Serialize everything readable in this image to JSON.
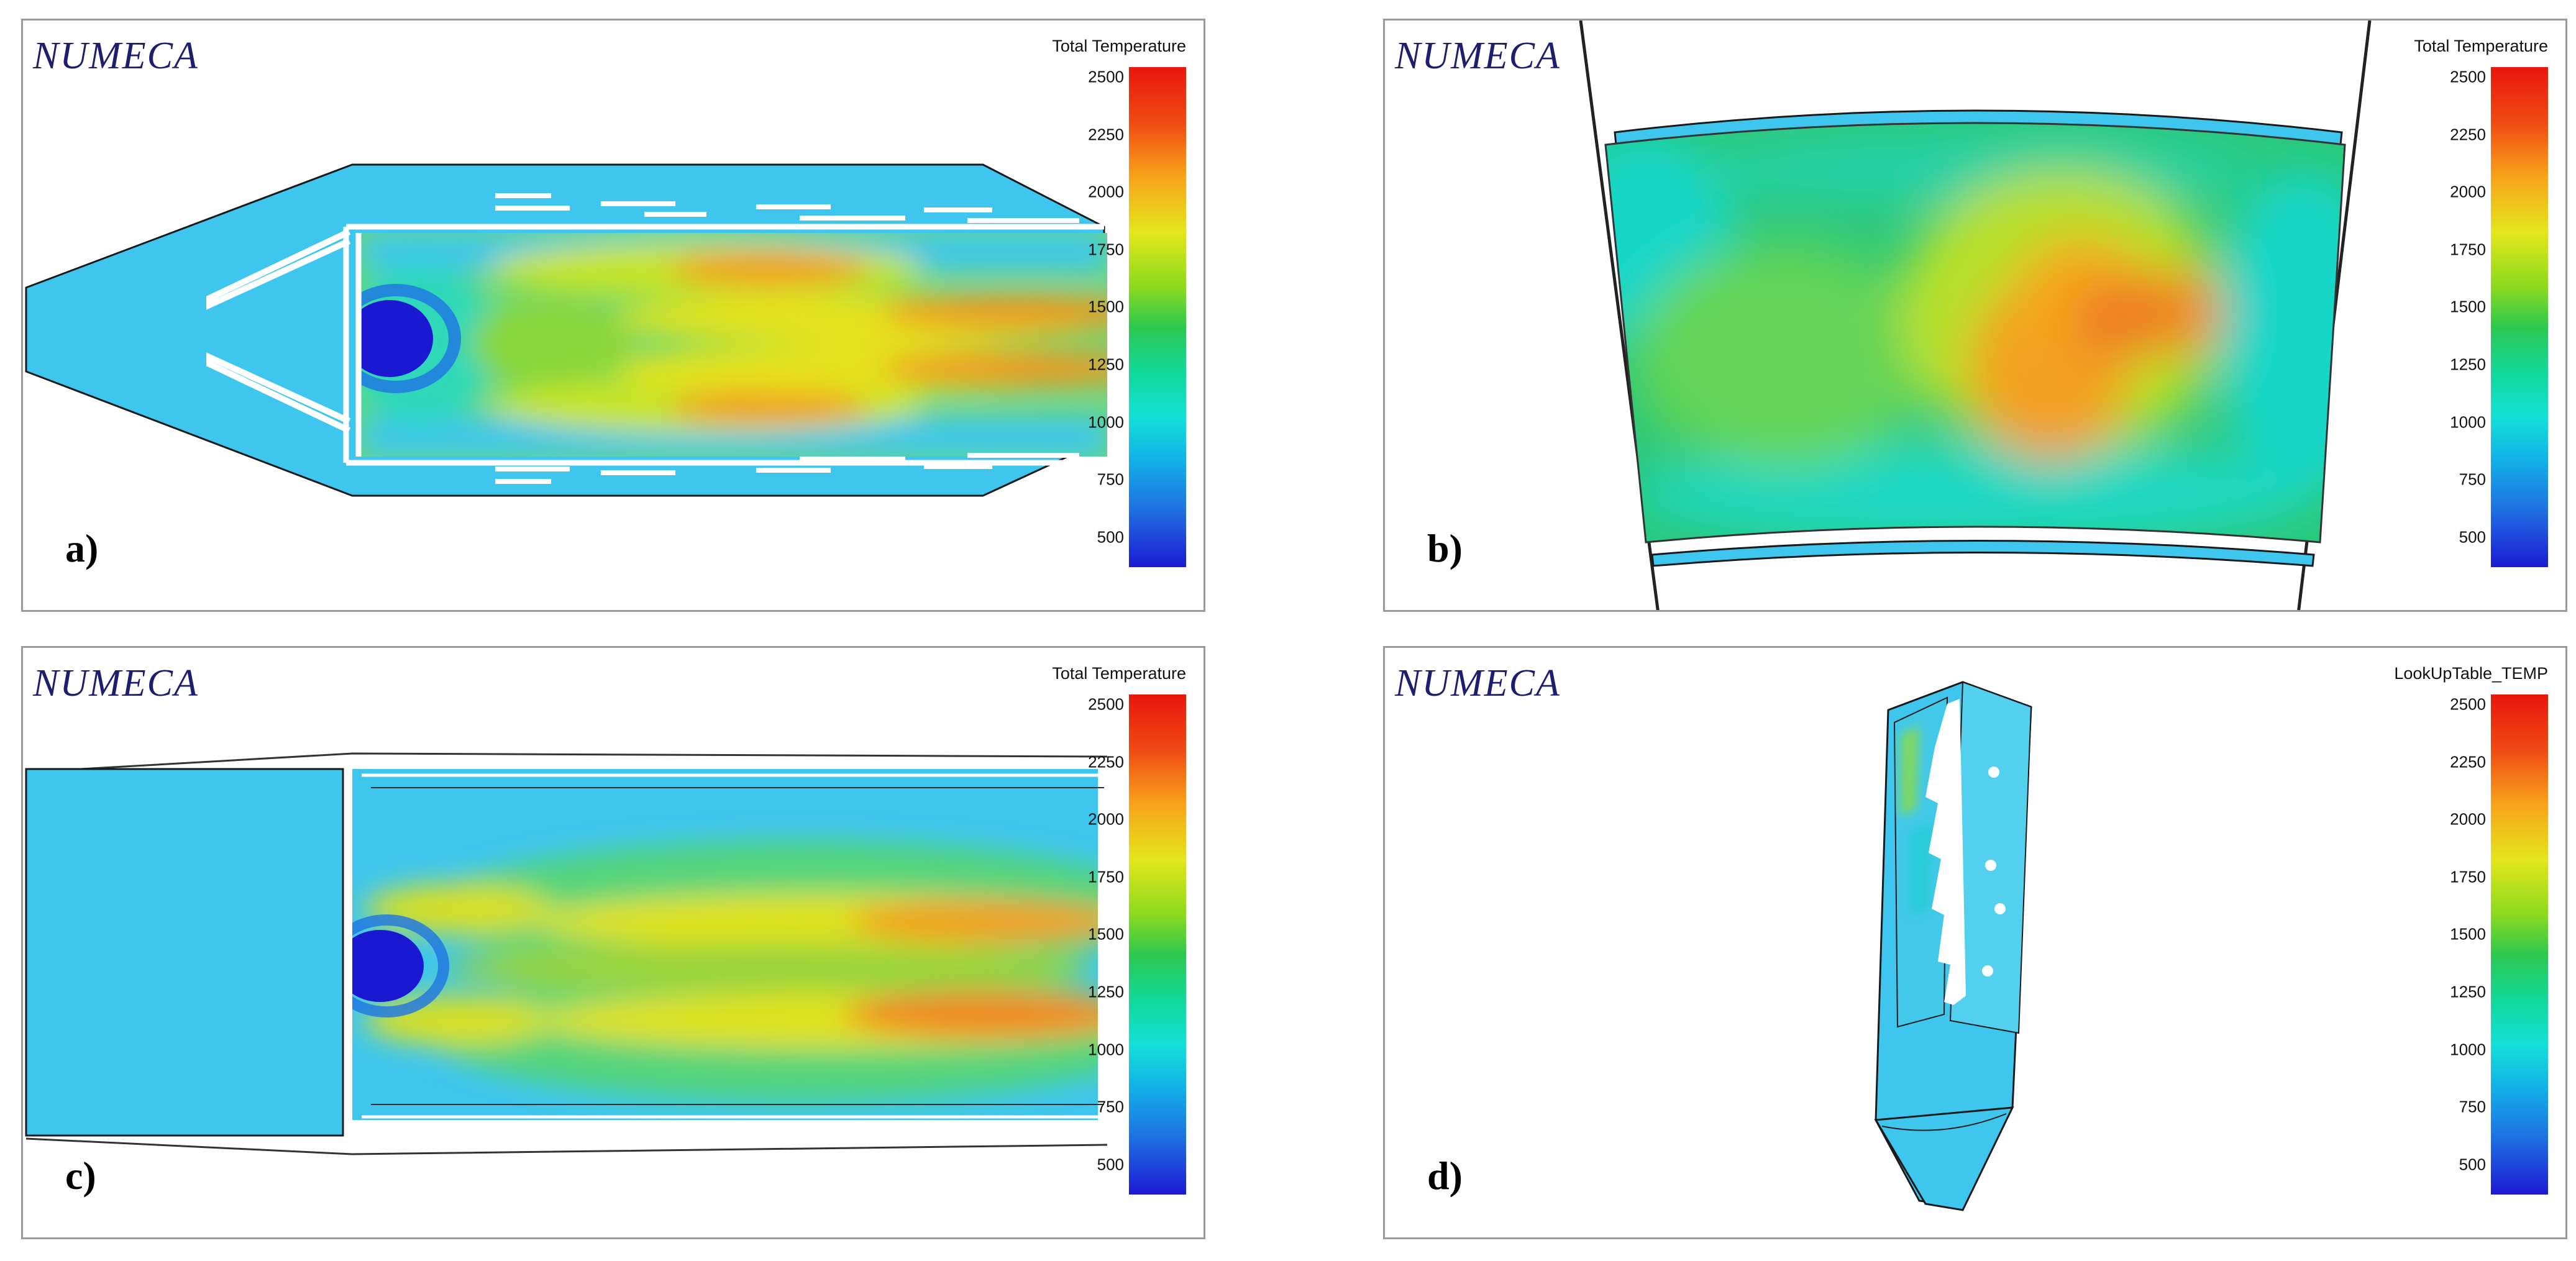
{
  "panels": {
    "a": {
      "brand": "NUMECA",
      "colorbar_title": "Total Temperature",
      "label": "a)"
    },
    "b": {
      "brand": "NUMECA",
      "colorbar_title": "Total Temperature",
      "label": "b)"
    },
    "c": {
      "brand": "NUMECA",
      "colorbar_title": "Total Temperature",
      "label": "c)"
    },
    "d": {
      "brand": "NUMECA",
      "colorbar_title": "LookUpTable_TEMP",
      "label": "d)"
    }
  },
  "colorbar_ticks": [
    "2500",
    "2250",
    "2000",
    "1750",
    "1500",
    "1250",
    "1000",
    "750",
    "500"
  ],
  "colors": {
    "brand_text": "#1e1e6e",
    "cold_fluid": "#3ec6ee",
    "hot_core": "#f08a22",
    "flame_dark": "#1a18d0"
  }
}
